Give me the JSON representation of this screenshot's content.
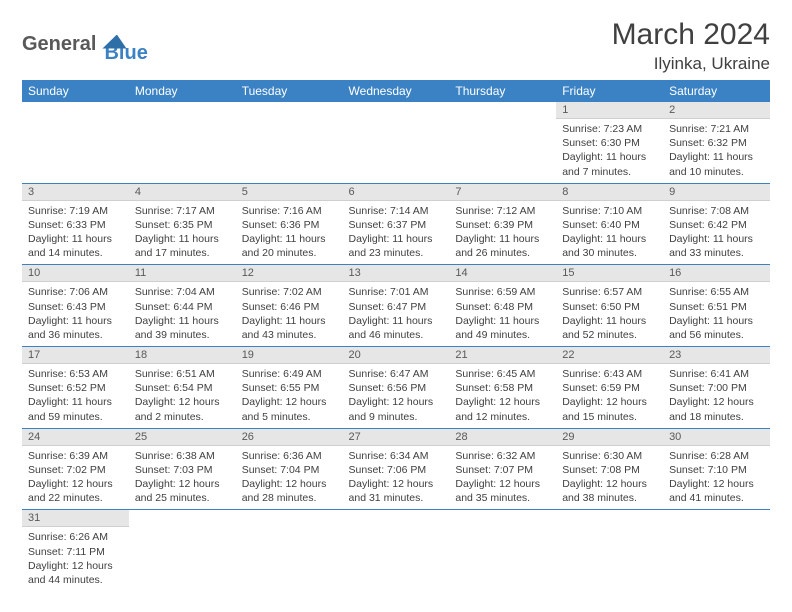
{
  "brand": {
    "part1": "General",
    "part2": "Blue"
  },
  "title": "March 2024",
  "location": "Ilyinka, Ukraine",
  "colors": {
    "header_bg": "#3b82c4",
    "header_text": "#ffffff",
    "daynum_bg": "#e6e6e6",
    "text": "#404040",
    "row_border": "#3b82c4"
  },
  "daysOfWeek": [
    "Sunday",
    "Monday",
    "Tuesday",
    "Wednesday",
    "Thursday",
    "Friday",
    "Saturday"
  ],
  "weeks": [
    [
      null,
      null,
      null,
      null,
      null,
      {
        "n": "1",
        "sr": "Sunrise: 7:23 AM",
        "ss": "Sunset: 6:30 PM",
        "d1": "Daylight: 11 hours",
        "d2": "and 7 minutes."
      },
      {
        "n": "2",
        "sr": "Sunrise: 7:21 AM",
        "ss": "Sunset: 6:32 PM",
        "d1": "Daylight: 11 hours",
        "d2": "and 10 minutes."
      }
    ],
    [
      {
        "n": "3",
        "sr": "Sunrise: 7:19 AM",
        "ss": "Sunset: 6:33 PM",
        "d1": "Daylight: 11 hours",
        "d2": "and 14 minutes."
      },
      {
        "n": "4",
        "sr": "Sunrise: 7:17 AM",
        "ss": "Sunset: 6:35 PM",
        "d1": "Daylight: 11 hours",
        "d2": "and 17 minutes."
      },
      {
        "n": "5",
        "sr": "Sunrise: 7:16 AM",
        "ss": "Sunset: 6:36 PM",
        "d1": "Daylight: 11 hours",
        "d2": "and 20 minutes."
      },
      {
        "n": "6",
        "sr": "Sunrise: 7:14 AM",
        "ss": "Sunset: 6:37 PM",
        "d1": "Daylight: 11 hours",
        "d2": "and 23 minutes."
      },
      {
        "n": "7",
        "sr": "Sunrise: 7:12 AM",
        "ss": "Sunset: 6:39 PM",
        "d1": "Daylight: 11 hours",
        "d2": "and 26 minutes."
      },
      {
        "n": "8",
        "sr": "Sunrise: 7:10 AM",
        "ss": "Sunset: 6:40 PM",
        "d1": "Daylight: 11 hours",
        "d2": "and 30 minutes."
      },
      {
        "n": "9",
        "sr": "Sunrise: 7:08 AM",
        "ss": "Sunset: 6:42 PM",
        "d1": "Daylight: 11 hours",
        "d2": "and 33 minutes."
      }
    ],
    [
      {
        "n": "10",
        "sr": "Sunrise: 7:06 AM",
        "ss": "Sunset: 6:43 PM",
        "d1": "Daylight: 11 hours",
        "d2": "and 36 minutes."
      },
      {
        "n": "11",
        "sr": "Sunrise: 7:04 AM",
        "ss": "Sunset: 6:44 PM",
        "d1": "Daylight: 11 hours",
        "d2": "and 39 minutes."
      },
      {
        "n": "12",
        "sr": "Sunrise: 7:02 AM",
        "ss": "Sunset: 6:46 PM",
        "d1": "Daylight: 11 hours",
        "d2": "and 43 minutes."
      },
      {
        "n": "13",
        "sr": "Sunrise: 7:01 AM",
        "ss": "Sunset: 6:47 PM",
        "d1": "Daylight: 11 hours",
        "d2": "and 46 minutes."
      },
      {
        "n": "14",
        "sr": "Sunrise: 6:59 AM",
        "ss": "Sunset: 6:48 PM",
        "d1": "Daylight: 11 hours",
        "d2": "and 49 minutes."
      },
      {
        "n": "15",
        "sr": "Sunrise: 6:57 AM",
        "ss": "Sunset: 6:50 PM",
        "d1": "Daylight: 11 hours",
        "d2": "and 52 minutes."
      },
      {
        "n": "16",
        "sr": "Sunrise: 6:55 AM",
        "ss": "Sunset: 6:51 PM",
        "d1": "Daylight: 11 hours",
        "d2": "and 56 minutes."
      }
    ],
    [
      {
        "n": "17",
        "sr": "Sunrise: 6:53 AM",
        "ss": "Sunset: 6:52 PM",
        "d1": "Daylight: 11 hours",
        "d2": "and 59 minutes."
      },
      {
        "n": "18",
        "sr": "Sunrise: 6:51 AM",
        "ss": "Sunset: 6:54 PM",
        "d1": "Daylight: 12 hours",
        "d2": "and 2 minutes."
      },
      {
        "n": "19",
        "sr": "Sunrise: 6:49 AM",
        "ss": "Sunset: 6:55 PM",
        "d1": "Daylight: 12 hours",
        "d2": "and 5 minutes."
      },
      {
        "n": "20",
        "sr": "Sunrise: 6:47 AM",
        "ss": "Sunset: 6:56 PM",
        "d1": "Daylight: 12 hours",
        "d2": "and 9 minutes."
      },
      {
        "n": "21",
        "sr": "Sunrise: 6:45 AM",
        "ss": "Sunset: 6:58 PM",
        "d1": "Daylight: 12 hours",
        "d2": "and 12 minutes."
      },
      {
        "n": "22",
        "sr": "Sunrise: 6:43 AM",
        "ss": "Sunset: 6:59 PM",
        "d1": "Daylight: 12 hours",
        "d2": "and 15 minutes."
      },
      {
        "n": "23",
        "sr": "Sunrise: 6:41 AM",
        "ss": "Sunset: 7:00 PM",
        "d1": "Daylight: 12 hours",
        "d2": "and 18 minutes."
      }
    ],
    [
      {
        "n": "24",
        "sr": "Sunrise: 6:39 AM",
        "ss": "Sunset: 7:02 PM",
        "d1": "Daylight: 12 hours",
        "d2": "and 22 minutes."
      },
      {
        "n": "25",
        "sr": "Sunrise: 6:38 AM",
        "ss": "Sunset: 7:03 PM",
        "d1": "Daylight: 12 hours",
        "d2": "and 25 minutes."
      },
      {
        "n": "26",
        "sr": "Sunrise: 6:36 AM",
        "ss": "Sunset: 7:04 PM",
        "d1": "Daylight: 12 hours",
        "d2": "and 28 minutes."
      },
      {
        "n": "27",
        "sr": "Sunrise: 6:34 AM",
        "ss": "Sunset: 7:06 PM",
        "d1": "Daylight: 12 hours",
        "d2": "and 31 minutes."
      },
      {
        "n": "28",
        "sr": "Sunrise: 6:32 AM",
        "ss": "Sunset: 7:07 PM",
        "d1": "Daylight: 12 hours",
        "d2": "and 35 minutes."
      },
      {
        "n": "29",
        "sr": "Sunrise: 6:30 AM",
        "ss": "Sunset: 7:08 PM",
        "d1": "Daylight: 12 hours",
        "d2": "and 38 minutes."
      },
      {
        "n": "30",
        "sr": "Sunrise: 6:28 AM",
        "ss": "Sunset: 7:10 PM",
        "d1": "Daylight: 12 hours",
        "d2": "and 41 minutes."
      }
    ],
    [
      {
        "n": "31",
        "sr": "Sunrise: 6:26 AM",
        "ss": "Sunset: 7:11 PM",
        "d1": "Daylight: 12 hours",
        "d2": "and 44 minutes."
      },
      null,
      null,
      null,
      null,
      null,
      null
    ]
  ]
}
